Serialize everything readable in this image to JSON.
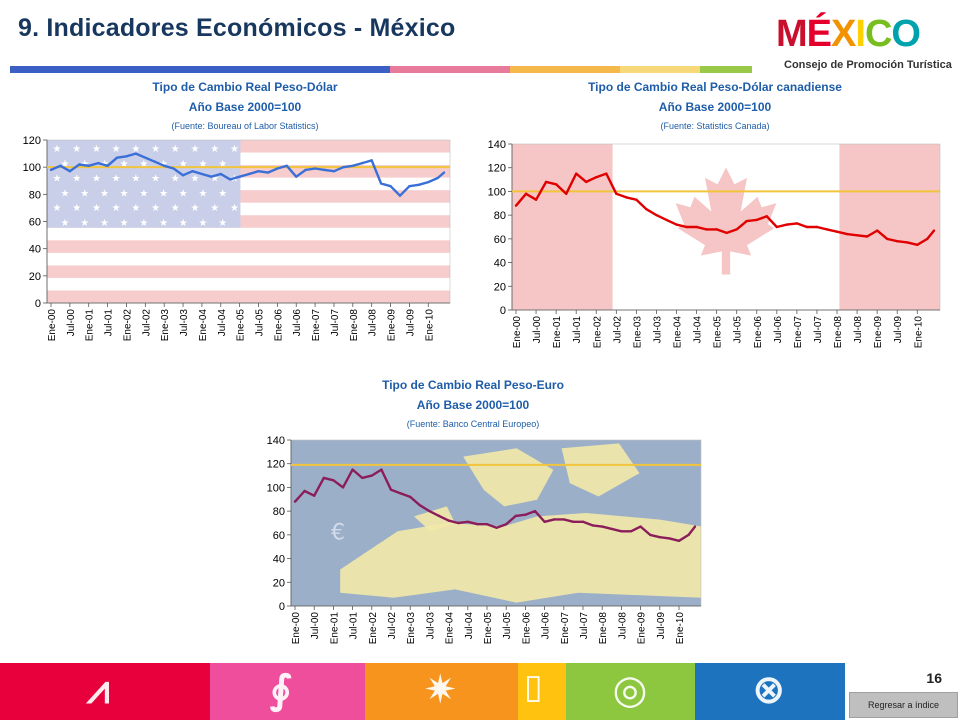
{
  "slide": {
    "title": "9. Indicadores Económicos  - México",
    "page_number": "16",
    "back_button_label": "Regresar a índice"
  },
  "logo": {
    "word_letters": [
      "M",
      "É",
      "X",
      "I",
      "C",
      "O"
    ],
    "word_colors": [
      "#c8102e",
      "#e4002b",
      "#f39200",
      "#ffd100",
      "#78be20",
      "#00a3ad"
    ],
    "subtitle": "Consejo de Promoción Turística"
  },
  "title_rule_colors": [
    "#3b5fc4",
    "#e87a9c",
    "#f5b84a",
    "#f7d97a",
    "#9ac94a"
  ],
  "footer": {
    "colors": [
      "#e8003c",
      "#ee4e9b",
      "#f7941d",
      "#ffc20e",
      "#8dc63f",
      "#1e73be"
    ],
    "icons": [
      "pyramid-glyph-icon",
      "spiral-glyph-icon",
      "sun-glyph-icon",
      "pillar-glyph-icon",
      "snail-glyph-icon",
      "circle-glyph-icon"
    ]
  },
  "chart_data": [
    {
      "type": "line",
      "title": "Tipo de Cambio Real Peso-Dólar",
      "subtitle": "Año Base 2000=100",
      "source": "(Fuente: Boureau of Labor Statistics)",
      "background": "us-flag",
      "series_color": "#3a6fd8",
      "reference_line": 100,
      "reference_color": "#f2c43b",
      "ylim": [
        0,
        120
      ],
      "yticks": [
        "0",
        "20",
        "40",
        "60",
        "80",
        "100",
        "120"
      ],
      "xticks": [
        "Ene-00",
        "Jul-00",
        "Ene-01",
        "Jul-01",
        "Ene-02",
        "Jul-02",
        "Ene-03",
        "Jul-03",
        "Ene-04",
        "Jul-04",
        "Ene-05",
        "Jul-05",
        "Ene-06",
        "Jul-06",
        "Ene-07",
        "Jul-07",
        "Ene-08",
        "Jul-08",
        "Ene-09",
        "Jul-09",
        "Ene-10"
      ],
      "x": [
        "Ene-00",
        "Abr-00",
        "Jul-00",
        "Oct-00",
        "Ene-01",
        "Abr-01",
        "Jul-01",
        "Oct-01",
        "Ene-02",
        "Abr-02",
        "Jul-02",
        "Oct-02",
        "Ene-03",
        "Abr-03",
        "Jul-03",
        "Oct-03",
        "Ene-04",
        "Abr-04",
        "Jul-04",
        "Oct-04",
        "Ene-05",
        "Abr-05",
        "Jul-05",
        "Oct-05",
        "Ene-06",
        "Abr-06",
        "Jul-06",
        "Oct-06",
        "Ene-07",
        "Abr-07",
        "Jul-07",
        "Oct-07",
        "Ene-08",
        "Abr-08",
        "Jul-08",
        "Oct-08",
        "Ene-09",
        "Abr-09",
        "Jul-09",
        "Oct-09",
        "Ene-10",
        "Abr-10",
        "Jun-10"
      ],
      "values": [
        98,
        101,
        97,
        102,
        101,
        103,
        101,
        107,
        108,
        110,
        107,
        104,
        101,
        99,
        94,
        97,
        95,
        93,
        95,
        91,
        93,
        95,
        97,
        96,
        99,
        101,
        93,
        98,
        99,
        98,
        97,
        100,
        101,
        103,
        105,
        88,
        86,
        79,
        86,
        87,
        89,
        92,
        96
      ]
    },
    {
      "type": "line",
      "title": "Tipo de Cambio Real Peso-Dólar canadiense",
      "subtitle": "Año Base 2000=100",
      "source": "(Fuente: Statistics Canada)",
      "background": "canada-flag",
      "series_color": "#e00000",
      "reference_line": 100,
      "reference_color": "#f2c43b",
      "ylim": [
        0,
        140
      ],
      "yticks": [
        "0",
        "20",
        "40",
        "60",
        "80",
        "100",
        "120",
        "140"
      ],
      "xticks": [
        "Ene-00",
        "Jul-00",
        "Ene-01",
        "Jul-01",
        "Ene-02",
        "Jul-02",
        "Ene-03",
        "Jul-03",
        "Ene-04",
        "Jul-04",
        "Ene-05",
        "Jul-05",
        "Ene-06",
        "Jul-06",
        "Ene-07",
        "Jul-07",
        "Ene-08",
        "Jul-08",
        "Ene-09",
        "Jul-09",
        "Ene-10"
      ],
      "x": [
        "Ene-00",
        "Abr-00",
        "Jul-00",
        "Oct-00",
        "Ene-01",
        "Abr-01",
        "Jul-01",
        "Oct-01",
        "Ene-02",
        "Abr-02",
        "Jul-02",
        "Oct-02",
        "Ene-03",
        "Abr-03",
        "Jul-03",
        "Oct-03",
        "Ene-04",
        "Abr-04",
        "Jul-04",
        "Oct-04",
        "Ene-05",
        "Abr-05",
        "Jul-05",
        "Oct-05",
        "Ene-06",
        "Abr-06",
        "Jul-06",
        "Oct-06",
        "Ene-07",
        "Abr-07",
        "Jul-07",
        "Oct-07",
        "Ene-08",
        "Abr-08",
        "Jul-08",
        "Oct-08",
        "Ene-09",
        "Abr-09",
        "Jul-09",
        "Oct-09",
        "Ene-10",
        "Abr-10",
        "Jun-10"
      ],
      "values": [
        88,
        98,
        93,
        108,
        106,
        98,
        115,
        108,
        112,
        115,
        98,
        95,
        93,
        85,
        80,
        76,
        72,
        70,
        70,
        68,
        68,
        65,
        68,
        75,
        76,
        79,
        70,
        72,
        73,
        70,
        70,
        68,
        66,
        64,
        63,
        62,
        67,
        60,
        58,
        57,
        55,
        60,
        67
      ]
    },
    {
      "type": "line",
      "title": "Tipo de Cambio Real Peso-Euro",
      "subtitle": "Año Base 2000=100",
      "source": "(Fuente: Banco Central Europeo)",
      "background": "eu-map",
      "series_color": "#8b1e5a",
      "reference_line": 119,
      "reference_color": "#f2c43b",
      "ylim": [
        0,
        140
      ],
      "yticks": [
        "0",
        "20",
        "40",
        "60",
        "80",
        "100",
        "120",
        "140"
      ],
      "xticks": [
        "Ene-00",
        "Jul-00",
        "Ene-01",
        "Jul-01",
        "Ene-02",
        "Jul-02",
        "Ene-03",
        "Jul-03",
        "Ene-04",
        "Jul-04",
        "Ene-05",
        "Jul-05",
        "Ene-06",
        "Jul-06",
        "Ene-07",
        "Jul-07",
        "Ene-08",
        "Jul-08",
        "Ene-09",
        "Jul-09",
        "Ene-10"
      ],
      "x": [
        "Ene-00",
        "Abr-00",
        "Jul-00",
        "Oct-00",
        "Ene-01",
        "Abr-01",
        "Jul-01",
        "Oct-01",
        "Ene-02",
        "Abr-02",
        "Jul-02",
        "Oct-02",
        "Ene-03",
        "Abr-03",
        "Jul-03",
        "Oct-03",
        "Ene-04",
        "Abr-04",
        "Jul-04",
        "Oct-04",
        "Ene-05",
        "Abr-05",
        "Jul-05",
        "Oct-05",
        "Ene-06",
        "Abr-06",
        "Jul-06",
        "Oct-06",
        "Ene-07",
        "Abr-07",
        "Jul-07",
        "Oct-07",
        "Ene-08",
        "Abr-08",
        "Jul-08",
        "Oct-08",
        "Ene-09",
        "Abr-09",
        "Jul-09",
        "Oct-09",
        "Ene-10",
        "Abr-10",
        "Jun-10"
      ],
      "values": [
        88,
        97,
        93,
        108,
        106,
        100,
        115,
        108,
        110,
        115,
        98,
        95,
        92,
        85,
        80,
        76,
        72,
        70,
        71,
        69,
        69,
        66,
        69,
        76,
        77,
        80,
        71,
        73,
        73,
        71,
        71,
        68,
        67,
        65,
        63,
        63,
        67,
        60,
        58,
        57,
        55,
        60,
        67
      ]
    }
  ]
}
